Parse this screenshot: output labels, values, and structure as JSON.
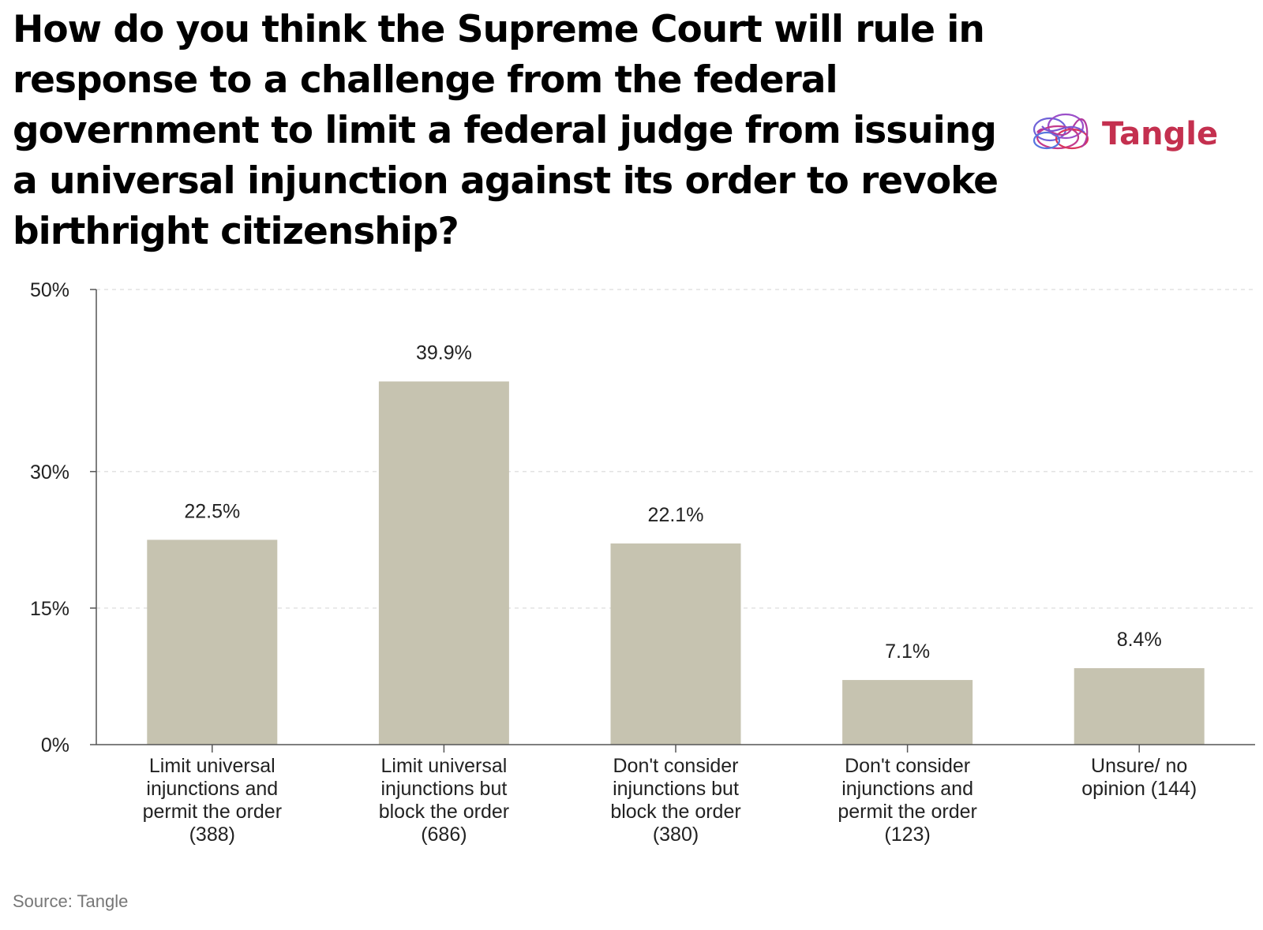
{
  "chart_data": {
    "type": "bar",
    "title": "How do you think the Supreme Court will rule in response to a challenge from the federal government to limit a federal judge from issuing a universal injunction against its order to revoke birthright citizenship?",
    "categories": [
      [
        "Limit universal",
        "injunctions and",
        "permit the order",
        "(388)"
      ],
      [
        "Limit universal",
        "injunctions but",
        "block the order",
        "(686)"
      ],
      [
        "Don't consider",
        "injunctions but",
        "block the order",
        "(380)"
      ],
      [
        "Don't consider",
        "injunctions and",
        "permit the order",
        "(123)"
      ],
      [
        "Unsure/ no",
        "opinion (144)"
      ]
    ],
    "values": [
      22.5,
      39.9,
      22.1,
      7.1,
      8.4
    ],
    "value_labels": [
      "22.5%",
      "39.9%",
      "22.1%",
      "7.1%",
      "8.4%"
    ],
    "y_ticks": [
      0,
      15,
      30,
      50
    ],
    "y_tick_labels": [
      "0%",
      "15%",
      "30%",
      "50%"
    ],
    "ylim": [
      0,
      50
    ],
    "bar_color": "#c6c3b0",
    "grid": true
  },
  "logo": {
    "text": "Tangle"
  },
  "source": "Source: Tangle"
}
